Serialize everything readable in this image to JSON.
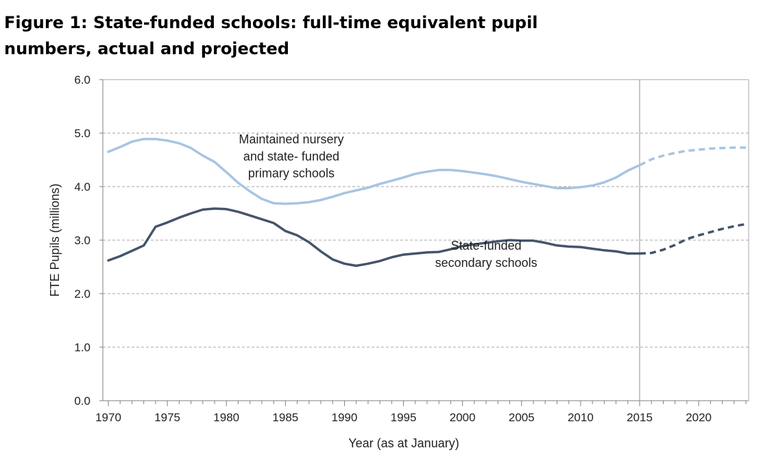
{
  "chart_data": {
    "type": "line",
    "title": "Figure 1: State-funded schools: full-time equivalent pupil numbers, actual and projected",
    "xlabel": "Year (as at January)",
    "ylabel": "FTE Pupils (millions)",
    "xlim": [
      1970,
      2024
    ],
    "ylim": [
      0,
      6
    ],
    "x_ticks": [
      1970,
      1975,
      1980,
      1985,
      1990,
      1995,
      2000,
      2005,
      2010,
      2015,
      2020
    ],
    "y_ticks": [
      "0.0",
      "1.0",
      "2.0",
      "3.0",
      "4.0",
      "5.0",
      "6.0"
    ],
    "grid": "horizontal dashed",
    "legend": "none",
    "projection_start": 2015,
    "series": [
      {
        "label": "Maintained nursery and state- funded primary schools",
        "color": "#a7c4e2",
        "actual": {
          "x": [
            1970,
            1971,
            1972,
            1973,
            1974,
            1975,
            1976,
            1977,
            1978,
            1979,
            1980,
            1981,
            1982,
            1983,
            1984,
            1985,
            1986,
            1987,
            1988,
            1989,
            1990,
            1991,
            1992,
            1993,
            1994,
            1995,
            1996,
            1997,
            1998,
            1999,
            2000,
            2001,
            2002,
            2003,
            2004,
            2005,
            2006,
            2007,
            2008,
            2009,
            2010,
            2011,
            2012,
            2013,
            2014,
            2015
          ],
          "y": [
            4.65,
            4.74,
            4.84,
            4.89,
            4.89,
            4.86,
            4.81,
            4.72,
            4.58,
            4.46,
            4.27,
            4.07,
            3.91,
            3.77,
            3.69,
            3.68,
            3.69,
            3.71,
            3.75,
            3.81,
            3.88,
            3.93,
            3.98,
            4.05,
            4.11,
            4.17,
            4.24,
            4.28,
            4.31,
            4.31,
            4.29,
            4.26,
            4.23,
            4.19,
            4.14,
            4.09,
            4.05,
            4.01,
            3.97,
            3.97,
            3.99,
            4.02,
            4.08,
            4.17,
            4.3,
            4.4
          ]
        },
        "projected": {
          "x": [
            2015,
            2016,
            2017,
            2018,
            2019,
            2020,
            2021,
            2022,
            2023,
            2024
          ],
          "y": [
            4.4,
            4.51,
            4.58,
            4.63,
            4.67,
            4.69,
            4.71,
            4.72,
            4.73,
            4.73
          ]
        }
      },
      {
        "label": "State-funded secondary schools",
        "color": "#44546a",
        "actual": {
          "x": [
            1970,
            1971,
            1972,
            1973,
            1974,
            1975,
            1976,
            1977,
            1978,
            1979,
            1980,
            1981,
            1982,
            1983,
            1984,
            1985,
            1986,
            1987,
            1988,
            1989,
            1990,
            1991,
            1992,
            1993,
            1994,
            1995,
            1996,
            1997,
            1998,
            1999,
            2000,
            2001,
            2002,
            2003,
            2004,
            2005,
            2006,
            2007,
            2008,
            2009,
            2010,
            2011,
            2012,
            2013,
            2014,
            2015
          ],
          "y": [
            2.62,
            2.7,
            2.8,
            2.9,
            3.25,
            3.33,
            3.42,
            3.5,
            3.57,
            3.59,
            3.58,
            3.53,
            3.46,
            3.39,
            3.32,
            3.17,
            3.09,
            2.96,
            2.79,
            2.64,
            2.56,
            2.52,
            2.56,
            2.61,
            2.68,
            2.73,
            2.75,
            2.77,
            2.78,
            2.83,
            2.89,
            2.92,
            2.95,
            2.98,
            3.0,
            2.99,
            2.99,
            2.95,
            2.9,
            2.88,
            2.87,
            2.84,
            2.81,
            2.79,
            2.75,
            2.75
          ]
        },
        "projected": {
          "x": [
            2015,
            2016,
            2017,
            2018,
            2019,
            2020,
            2021,
            2022,
            2023,
            2024
          ],
          "y": [
            2.75,
            2.76,
            2.82,
            2.91,
            3.02,
            3.09,
            3.15,
            3.21,
            3.26,
            3.3
          ]
        }
      }
    ],
    "annotations": [
      {
        "lines": [
          "Maintained nursery",
          "and state- funded",
          "primary schools"
        ],
        "x": 1985.5,
        "y": 4.81,
        "dy": 0.32
      },
      {
        "lines": [
          "State-funded",
          "secondary schools"
        ],
        "x": 2002,
        "y": 2.82,
        "dy": 0.32
      }
    ]
  }
}
